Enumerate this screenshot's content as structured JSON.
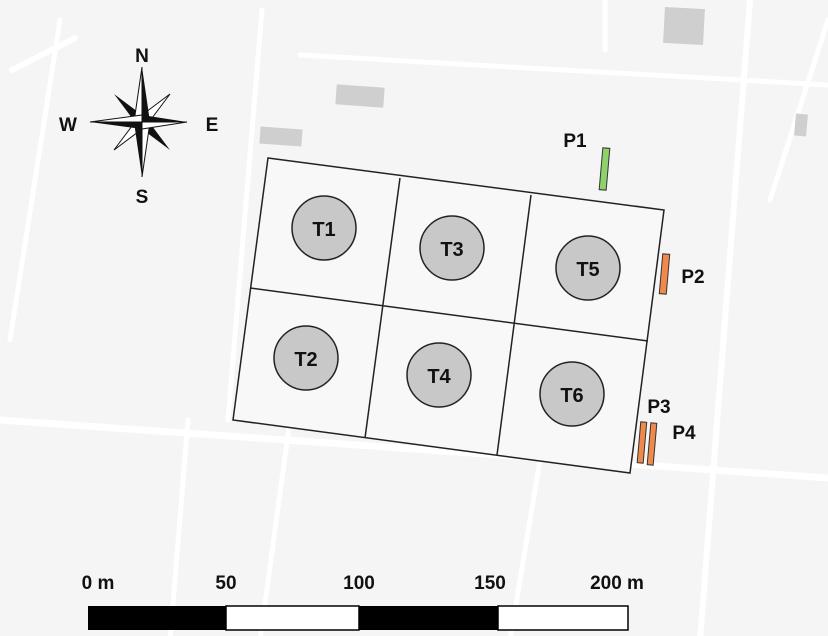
{
  "compass": {
    "north": "N",
    "south": "S",
    "east": "E",
    "west": "W"
  },
  "tanks": [
    {
      "id": "t1",
      "label": "T1"
    },
    {
      "id": "t2",
      "label": "T2"
    },
    {
      "id": "t3",
      "label": "T3"
    },
    {
      "id": "t4",
      "label": "T4"
    },
    {
      "id": "t5",
      "label": "T5"
    },
    {
      "id": "t6",
      "label": "T6"
    }
  ],
  "markers": [
    {
      "id": "p1",
      "label": "P1",
      "color": "#8fd16a"
    },
    {
      "id": "p2",
      "label": "P2",
      "color": "#f08a4b"
    },
    {
      "id": "p3",
      "label": "P3",
      "color": "#f08a4b"
    },
    {
      "id": "p4",
      "label": "P4",
      "color": "#f08a4b"
    }
  ],
  "scale_bar": {
    "ticks": [
      "0 m",
      "50",
      "100",
      "150",
      "200 m"
    ],
    "fill_dark": "#000000",
    "fill_light": "#ffffff"
  },
  "colors": {
    "background": "#f5f5f5",
    "road": "#ffffff",
    "building": "#cfcfcf",
    "tank_fill": "#c8c8c8",
    "outline": "#222222"
  }
}
